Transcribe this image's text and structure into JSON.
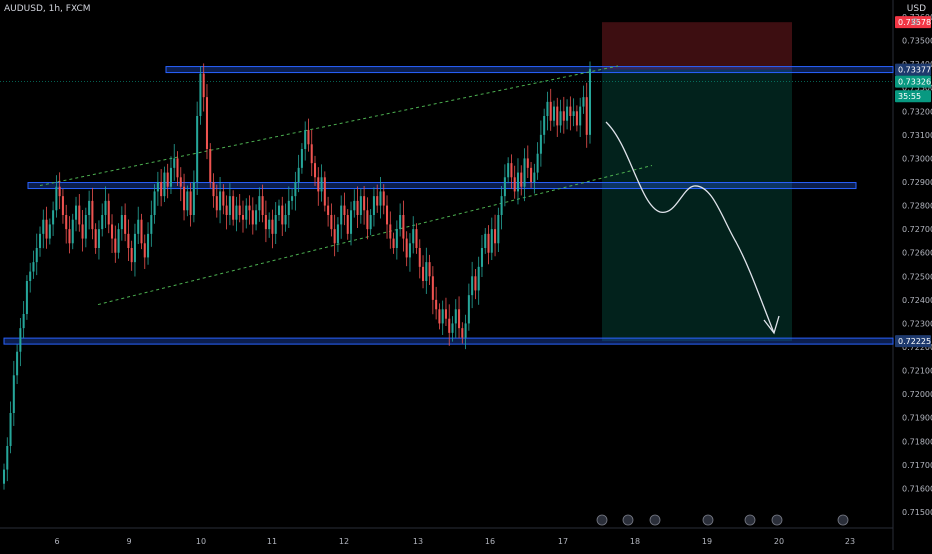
{
  "header": {
    "symbol": "AUDUSD, 1h, FXCM",
    "currency": "USD"
  },
  "chart_data": {
    "type": "candlestick",
    "symbol": "AUDUSD",
    "interval": "1h",
    "source": "FXCM",
    "y_ticks": [
      "0.73600",
      "0.73500",
      "0.73400",
      "0.73300",
      "0.73200",
      "0.73100",
      "0.73000",
      "0.72900",
      "0.72800",
      "0.72700",
      "0.72600",
      "0.72500",
      "0.72400",
      "0.72300",
      "0.72200",
      "0.72100",
      "0.72000",
      "0.71900",
      "0.71800",
      "0.71700",
      "0.71600",
      "0.71500"
    ],
    "x_ticks": [
      {
        "label": "6",
        "t": 0
      },
      {
        "label": "9",
        "t": 1
      },
      {
        "label": "10",
        "t": 2
      },
      {
        "label": "11",
        "t": 3
      },
      {
        "label": "12",
        "t": 4
      },
      {
        "label": "13",
        "t": 5
      },
      {
        "label": "16",
        "t": 6
      },
      {
        "label": "17",
        "t": 7
      },
      {
        "label": "18",
        "t": 8
      },
      {
        "label": "19",
        "t": 9
      },
      {
        "label": "20",
        "t": 10
      },
      {
        "label": "23",
        "t": 11
      }
    ],
    "price_tags": [
      {
        "label": "0.73578",
        "value": 0.73578,
        "color": "#f23645"
      },
      {
        "label": "0.73377",
        "value": 0.73377,
        "color": "#1e3a6e"
      },
      {
        "label": "0.73326",
        "value": 0.73326,
        "color": "#089981"
      },
      {
        "label": "35:55",
        "value": 0.73264,
        "color": "#089981"
      },
      {
        "label": "0.72225",
        "value": 0.72225,
        "color": "#1e3a6e"
      }
    ],
    "closes": [
      0.7168,
      0.7178,
      0.7192,
      0.7208,
      0.7218,
      0.7228,
      0.7234,
      0.7248,
      0.7252,
      0.7256,
      0.7262,
      0.7268,
      0.7274,
      0.7266,
      0.7272,
      0.7278,
      0.7288,
      0.7284,
      0.7276,
      0.727,
      0.7264,
      0.7274,
      0.728,
      0.7272,
      0.7266,
      0.7276,
      0.7282,
      0.727,
      0.7262,
      0.727,
      0.7276,
      0.7282,
      0.7272,
      0.7266,
      0.726,
      0.727,
      0.7276,
      0.7268,
      0.7262,
      0.7256,
      0.7268,
      0.7274,
      0.7264,
      0.7258,
      0.7268,
      0.7276,
      0.7286,
      0.729,
      0.7284,
      0.7294,
      0.7288,
      0.7296,
      0.73,
      0.7292,
      0.7288,
      0.7278,
      0.7286,
      0.7276,
      0.729,
      0.7318,
      0.7336,
      0.7326,
      0.7304,
      0.729,
      0.7284,
      0.7278,
      0.7286,
      0.728,
      0.7276,
      0.7284,
      0.7274,
      0.728,
      0.7276,
      0.7274,
      0.728,
      0.7278,
      0.7272,
      0.7278,
      0.7284,
      0.7276,
      0.727,
      0.7274,
      0.7268,
      0.7276,
      0.728,
      0.7272,
      0.7276,
      0.7282,
      0.7284,
      0.729,
      0.7296,
      0.7304,
      0.7312,
      0.7306,
      0.7298,
      0.7292,
      0.7286,
      0.7292,
      0.728,
      0.7276,
      0.727,
      0.7264,
      0.7272,
      0.728,
      0.7276,
      0.7268,
      0.7278,
      0.7282,
      0.7276,
      0.7284,
      0.7278,
      0.727,
      0.7276,
      0.7284,
      0.728,
      0.7286,
      0.728,
      0.7272,
      0.7266,
      0.7262,
      0.727,
      0.7276,
      0.7266,
      0.7258,
      0.7264,
      0.727,
      0.7262,
      0.7254,
      0.7248,
      0.7256,
      0.725,
      0.724,
      0.7236,
      0.723,
      0.7236,
      0.7232,
      0.7226,
      0.723,
      0.7236,
      0.7228,
      0.7224,
      0.723,
      0.7242,
      0.725,
      0.7244,
      0.7254,
      0.7262,
      0.7268,
      0.726,
      0.727,
      0.7264,
      0.7276,
      0.7284,
      0.7292,
      0.7298,
      0.7292,
      0.7286,
      0.7294,
      0.7288,
      0.73,
      0.7296,
      0.729,
      0.7294,
      0.7302,
      0.731,
      0.7318,
      0.7324,
      0.7316,
      0.7322,
      0.7314,
      0.732,
      0.7316,
      0.7322,
      0.7318,
      0.732,
      0.7314,
      0.7322,
      0.7326,
      0.731,
      0.7338
    ]
  }
}
